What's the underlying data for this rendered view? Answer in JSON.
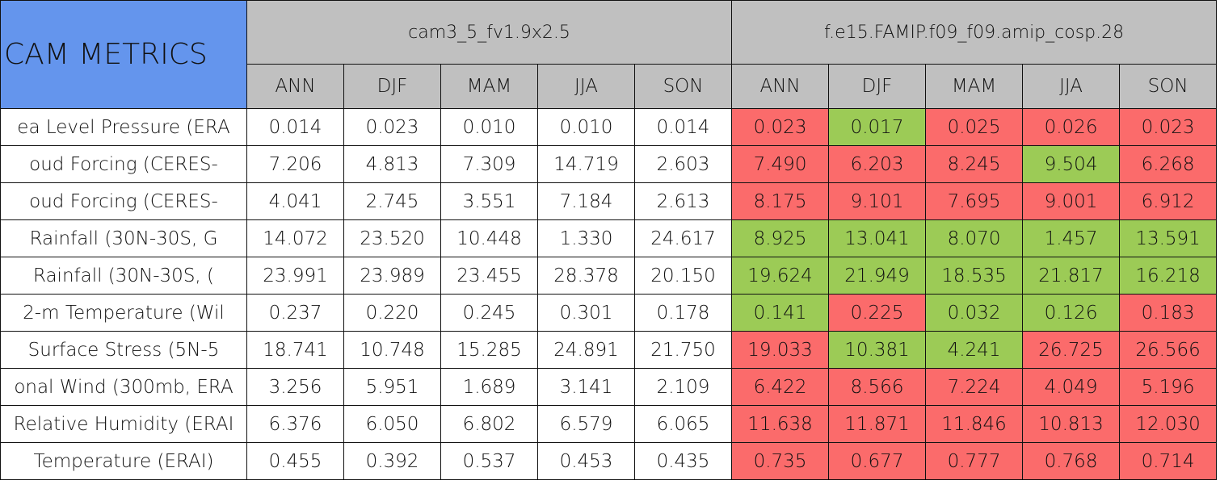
{
  "table": {
    "corner": "CAM METRICS",
    "models": [
      "cam3_5_fv1.9x2.5",
      "f.e15.FAMIP.f09_f09.amip_cosp.28"
    ],
    "seasons": [
      "ANN",
      "DJF",
      "MAM",
      "JJA",
      "SON",
      "ANN",
      "DJF",
      "MAM",
      "JJA",
      "SON"
    ],
    "colors": {
      "plain": "#ffffff",
      "red": "#fb6b6b",
      "green": "#9ccb56",
      "header": "#c0c0c0",
      "corner": "#6495ed"
    },
    "rows": [
      {
        "label": "ea Level Pressure (ERA",
        "values": [
          "0.014",
          "0.023",
          "0.010",
          "0.010",
          "0.014",
          "0.023",
          "0.017",
          "0.025",
          "0.026",
          "0.023"
        ],
        "shade": [
          "plain",
          "plain",
          "plain",
          "plain",
          "plain",
          "red",
          "green",
          "red",
          "red",
          "red"
        ]
      },
      {
        "label": "oud Forcing (CERES-",
        "values": [
          "7.206",
          "4.813",
          "7.309",
          "14.719",
          "2.603",
          "7.490",
          "6.203",
          "8.245",
          "9.504",
          "6.268"
        ],
        "shade": [
          "plain",
          "plain",
          "plain",
          "plain",
          "plain",
          "red",
          "red",
          "red",
          "green",
          "red"
        ]
      },
      {
        "label": "oud Forcing (CERES-",
        "values": [
          "4.041",
          "2.745",
          "3.551",
          "7.184",
          "2.613",
          "8.175",
          "9.101",
          "7.695",
          "9.001",
          "6.912"
        ],
        "shade": [
          "plain",
          "plain",
          "plain",
          "plain",
          "plain",
          "red",
          "red",
          "red",
          "red",
          "red"
        ]
      },
      {
        "label": "Rainfall (30N-30S, G",
        "values": [
          "14.072",
          "23.520",
          "10.448",
          "1.330",
          "24.617",
          "8.925",
          "13.041",
          "8.070",
          "1.457",
          "13.591"
        ],
        "shade": [
          "plain",
          "plain",
          "plain",
          "plain",
          "plain",
          "green",
          "green",
          "green",
          "green",
          "green"
        ]
      },
      {
        "label": "Rainfall (30N-30S, (",
        "values": [
          "23.991",
          "23.989",
          "23.455",
          "28.378",
          "20.150",
          "19.624",
          "21.949",
          "18.535",
          "21.817",
          "16.218"
        ],
        "shade": [
          "plain",
          "plain",
          "plain",
          "plain",
          "plain",
          "green",
          "green",
          "green",
          "green",
          "green"
        ]
      },
      {
        "label": "2-m Temperature (Wil",
        "values": [
          "0.237",
          "0.220",
          "0.245",
          "0.301",
          "0.178",
          "0.141",
          "0.225",
          "0.032",
          "0.126",
          "0.183"
        ],
        "shade": [
          "plain",
          "plain",
          "plain",
          "plain",
          "plain",
          "green",
          "red",
          "green",
          "green",
          "red"
        ]
      },
      {
        "label": "Surface Stress (5N-5",
        "values": [
          "18.741",
          "10.748",
          "15.285",
          "24.891",
          "21.750",
          "19.033",
          "10.381",
          "4.241",
          "26.725",
          "26.566"
        ],
        "shade": [
          "plain",
          "plain",
          "plain",
          "plain",
          "plain",
          "red",
          "green",
          "green",
          "red",
          "red"
        ]
      },
      {
        "label": "onal Wind (300mb, ERA",
        "values": [
          "3.256",
          "5.951",
          "1.689",
          "3.141",
          "2.109",
          "6.422",
          "8.566",
          "7.224",
          "4.049",
          "5.196"
        ],
        "shade": [
          "plain",
          "plain",
          "plain",
          "plain",
          "plain",
          "red",
          "red",
          "red",
          "red",
          "red"
        ]
      },
      {
        "label": "Relative Humidity (ERAI",
        "values": [
          "6.376",
          "6.050",
          "6.802",
          "6.579",
          "6.065",
          "11.638",
          "11.871",
          "11.846",
          "10.813",
          "12.030"
        ],
        "shade": [
          "plain",
          "plain",
          "plain",
          "plain",
          "plain",
          "red",
          "red",
          "red",
          "red",
          "red"
        ]
      },
      {
        "label": "Temperature (ERAI)",
        "values": [
          "0.455",
          "0.392",
          "0.537",
          "0.453",
          "0.435",
          "0.735",
          "0.677",
          "0.777",
          "0.768",
          "0.714"
        ],
        "shade": [
          "plain",
          "plain",
          "plain",
          "plain",
          "plain",
          "red",
          "red",
          "red",
          "red",
          "red"
        ]
      }
    ]
  }
}
